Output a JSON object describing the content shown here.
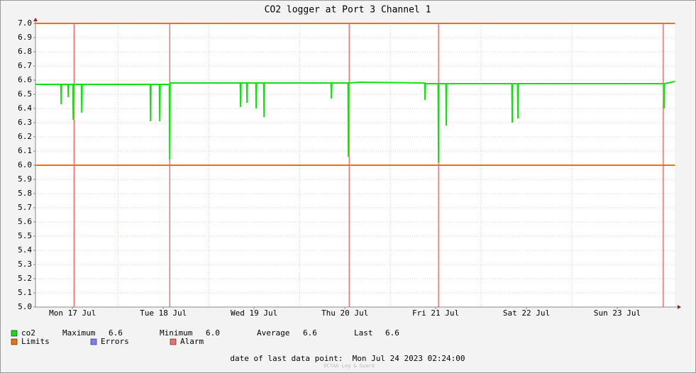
{
  "chart_data": {
    "type": "line",
    "title": "CO2 logger at Port 3 Channel 1",
    "x": [
      2.25,
      8.9,
      9.0,
      9.1,
      10.775,
      10.875,
      10.975,
      12.09,
      12.19,
      12.29,
      14.34,
      14.44,
      14.54,
      32.53,
      32.63,
      32.73,
      34.96,
      35.06,
      35.16,
      37.59,
      37.69,
      37.79,
      40.0,
      56.34,
      56.44,
      56.54,
      58.03,
      58.13,
      58.23,
      60.46,
      60.56,
      60.66,
      62.53,
      62.63,
      62.73,
      80.34,
      80.44,
      80.54,
      84.84,
      84.94,
      85.04,
      88.0,
      105.09,
      105.19,
      105.29,
      108.65,
      108.75,
      108.85,
      110.71,
      110.81,
      110.91,
      128.15,
      128.25,
      128.35,
      129.65,
      129.75,
      129.85,
      168.28,
      168.38,
      168.48,
      171.19
    ],
    "series": [
      {
        "name": "co2",
        "color": "#11e011",
        "values": [
          6.57,
          6.57,
          6.43,
          6.57,
          6.57,
          6.48,
          6.57,
          6.57,
          6.32,
          6.57,
          6.57,
          6.37,
          6.57,
          6.57,
          6.31,
          6.57,
          6.57,
          6.31,
          6.57,
          6.57,
          6.04,
          6.58,
          6.58,
          6.58,
          6.41,
          6.58,
          6.58,
          6.44,
          6.58,
          6.58,
          6.4,
          6.58,
          6.58,
          6.34,
          6.58,
          6.58,
          6.47,
          6.58,
          6.58,
          6.06,
          6.58,
          6.585,
          6.58,
          6.46,
          6.575,
          6.575,
          6.02,
          6.575,
          6.575,
          6.28,
          6.575,
          6.575,
          6.3,
          6.575,
          6.575,
          6.33,
          6.575,
          6.575,
          6.4,
          6.575,
          6.59
        ]
      }
    ],
    "limits": [
      7.0,
      6.0
    ],
    "limits_color": "#f07000",
    "alarms": [
      12.38,
      37.69,
      85.13,
      108.75,
      168.19
    ],
    "alarm_color": "#f03030",
    "xlim": [
      2.2,
      171.2
    ],
    "xticks": [
      {
        "value": 12,
        "label": "Mon 17 Jul"
      },
      {
        "value": 36,
        "label": "Tue 18 Jul"
      },
      {
        "value": 60,
        "label": "Wed 19 Jul"
      },
      {
        "value": 84,
        "label": "Thu 20 Jul"
      },
      {
        "value": 108,
        "label": "Fri 21 Jul"
      },
      {
        "value": 132,
        "label": "Sat 22 Jul"
      },
      {
        "value": 156,
        "label": "Sun 23 Jul"
      }
    ],
    "xgrid": [
      24,
      48,
      72,
      96,
      120,
      144,
      168
    ],
    "ylim": [
      5.0,
      7.0
    ],
    "yticks": [
      {
        "value": 5.0,
        "label": "5.0"
      },
      {
        "value": 5.1,
        "label": "5.1"
      },
      {
        "value": 5.2,
        "label": "5.2"
      },
      {
        "value": 5.3,
        "label": "5.3"
      },
      {
        "value": 5.4,
        "label": "5.4"
      },
      {
        "value": 5.5,
        "label": "5.5"
      },
      {
        "value": 5.6,
        "label": "5.6"
      },
      {
        "value": 5.7,
        "label": "5.7"
      },
      {
        "value": 5.8,
        "label": "5.8"
      },
      {
        "value": 5.9,
        "label": "5.9"
      },
      {
        "value": 6.0,
        "label": "6.0"
      },
      {
        "value": 6.1,
        "label": "6.1"
      },
      {
        "value": 6.2,
        "label": "6.2"
      },
      {
        "value": 6.3,
        "label": "6.3"
      },
      {
        "value": 6.4,
        "label": "6.4"
      },
      {
        "value": 6.5,
        "label": "6.5"
      },
      {
        "value": 6.6,
        "label": "6.6"
      },
      {
        "value": 6.7,
        "label": "6.7"
      },
      {
        "value": 6.8,
        "label": "6.8"
      },
      {
        "value": 6.9,
        "label": "6.9"
      },
      {
        "value": 7.0,
        "label": "7.0"
      }
    ],
    "grid": true,
    "legend": {
      "stats": [
        "Maximum",
        "6.6",
        "Minimum",
        "6.0",
        "Average",
        "6.6",
        "Last",
        "6.6"
      ],
      "items": [
        {
          "name": "Limits",
          "color": "#f07000"
        },
        {
          "name": "Errors",
          "color": "#7f7fff"
        },
        {
          "name": "Alarm",
          "color": "#f07070"
        }
      ]
    },
    "footer": "date of last data point:  Mon Jul 24 2023 02:24:00",
    "watermark": "OCTAA Log & Guard"
  }
}
